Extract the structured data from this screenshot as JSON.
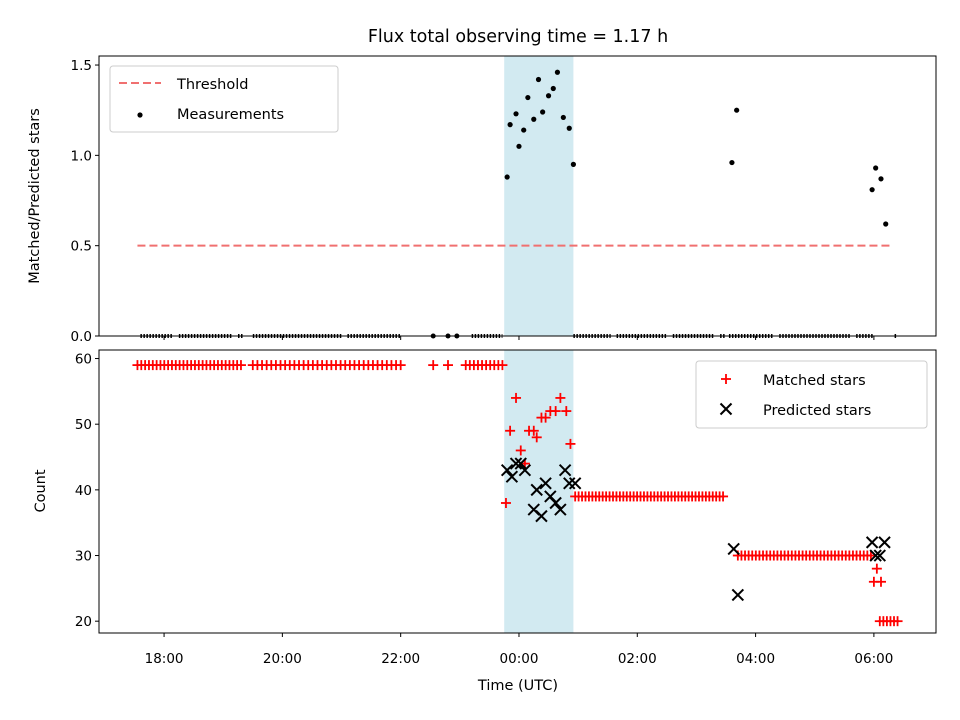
{
  "chart_data": [
    {
      "type": "scatter",
      "title": "Flux total observing time = 1.17 h",
      "xlabel": "",
      "ylabel": "Matched/Predicted stars",
      "ylim": [
        0,
        1.55
      ],
      "yticks": [
        "0.0",
        "0.5",
        "1.0",
        "1.5"
      ],
      "ytick_values": [
        0,
        0.5,
        1.0,
        1.5
      ],
      "xlim_hours": [
        16.9,
        31.05
      ],
      "threshold": {
        "name": "Threshold",
        "value": 0.5,
        "x_start": 17.55,
        "x_end": 30.3,
        "color": "#f07070"
      },
      "highlight": {
        "x_start": 23.75,
        "x_end": 24.92,
        "color": "#add8e6"
      },
      "measurements_name": "Measurements",
      "zero_segments": [
        [
          17.6,
          18.15
        ],
        [
          18.25,
          19.15
        ],
        [
          19.25,
          19.35
        ],
        [
          19.5,
          21.0
        ],
        [
          21.1,
          22.0
        ],
        [
          23.2,
          23.72
        ],
        [
          24.92,
          25.55
        ],
        [
          25.65,
          26.5
        ],
        [
          26.6,
          27.3
        ],
        [
          27.4,
          27.5
        ],
        [
          27.55,
          28.3
        ],
        [
          28.4,
          29.6
        ],
        [
          29.7,
          30.0
        ],
        [
          30.35,
          30.4
        ]
      ],
      "zero_extra": [
        22.55,
        22.8,
        22.95
      ],
      "points": [
        {
          "x": 23.8,
          "y": 0.88
        },
        {
          "x": 23.85,
          "y": 1.17
        },
        {
          "x": 23.95,
          "y": 1.23
        },
        {
          "x": 24.0,
          "y": 1.05
        },
        {
          "x": 24.08,
          "y": 1.14
        },
        {
          "x": 24.15,
          "y": 1.32
        },
        {
          "x": 24.25,
          "y": 1.2
        },
        {
          "x": 24.33,
          "y": 1.42
        },
        {
          "x": 24.4,
          "y": 1.24
        },
        {
          "x": 24.5,
          "y": 1.33
        },
        {
          "x": 24.58,
          "y": 1.37
        },
        {
          "x": 24.65,
          "y": 1.46
        },
        {
          "x": 24.75,
          "y": 1.21
        },
        {
          "x": 24.85,
          "y": 1.15
        },
        {
          "x": 24.92,
          "y": 0.95
        },
        {
          "x": 27.6,
          "y": 0.96
        },
        {
          "x": 27.68,
          "y": 1.25
        },
        {
          "x": 29.97,
          "y": 0.81
        },
        {
          "x": 30.03,
          "y": 0.93
        },
        {
          "x": 30.12,
          "y": 0.87
        },
        {
          "x": 30.2,
          "y": 0.62
        }
      ]
    },
    {
      "type": "scatter",
      "title": "",
      "xlabel": "Time (UTC)",
      "ylabel": "Count",
      "ylim": [
        18.2,
        61.3
      ],
      "yticks": [
        "20",
        "30",
        "40",
        "50",
        "60"
      ],
      "ytick_values": [
        20,
        30,
        40,
        50,
        60
      ],
      "xticks": [
        "18:00",
        "20:00",
        "22:00",
        "00:00",
        "02:00",
        "04:00",
        "06:00"
      ],
      "xtick_hours": [
        18,
        20,
        22,
        24,
        26,
        28,
        30
      ],
      "matched_name": "Matched stars",
      "predicted_name": "Predicted stars",
      "matched_color": "#ff0000",
      "predicted_color": "#000000",
      "matched_runs": [
        {
          "x0": 17.55,
          "x1": 19.3,
          "n": 28,
          "y": 59
        },
        {
          "x0": 19.5,
          "x1": 22.0,
          "n": 33,
          "y": 59
        },
        {
          "x0": 23.1,
          "x1": 23.72,
          "n": 10,
          "y": 59
        },
        {
          "x0": 24.95,
          "x1": 27.45,
          "n": 44,
          "y": 39
        },
        {
          "x0": 27.7,
          "x1": 29.95,
          "n": 38,
          "y": 30
        },
        {
          "x0": 30.1,
          "x1": 30.4,
          "n": 6,
          "y": 20
        }
      ],
      "matched_points": [
        {
          "x": 22.55,
          "y": 59
        },
        {
          "x": 22.8,
          "y": 59
        },
        {
          "x": 23.78,
          "y": 38
        },
        {
          "x": 23.85,
          "y": 49
        },
        {
          "x": 23.95,
          "y": 54
        },
        {
          "x": 24.03,
          "y": 46
        },
        {
          "x": 24.1,
          "y": 44
        },
        {
          "x": 24.17,
          "y": 49
        },
        {
          "x": 24.25,
          "y": 49
        },
        {
          "x": 24.3,
          "y": 48
        },
        {
          "x": 24.38,
          "y": 51
        },
        {
          "x": 24.45,
          "y": 51
        },
        {
          "x": 24.53,
          "y": 52
        },
        {
          "x": 24.62,
          "y": 52
        },
        {
          "x": 24.7,
          "y": 54
        },
        {
          "x": 24.8,
          "y": 52
        },
        {
          "x": 24.87,
          "y": 47
        },
        {
          "x": 30.0,
          "y": 26
        },
        {
          "x": 30.05,
          "y": 28
        },
        {
          "x": 30.12,
          "y": 26
        }
      ],
      "predicted_points": [
        {
          "x": 23.8,
          "y": 43
        },
        {
          "x": 23.88,
          "y": 42
        },
        {
          "x": 23.95,
          "y": 44
        },
        {
          "x": 24.03,
          "y": 44
        },
        {
          "x": 24.1,
          "y": 43
        },
        {
          "x": 24.25,
          "y": 37
        },
        {
          "x": 24.3,
          "y": 40
        },
        {
          "x": 24.38,
          "y": 36
        },
        {
          "x": 24.45,
          "y": 41
        },
        {
          "x": 24.53,
          "y": 39
        },
        {
          "x": 24.62,
          "y": 38
        },
        {
          "x": 24.7,
          "y": 37
        },
        {
          "x": 24.78,
          "y": 43
        },
        {
          "x": 24.85,
          "y": 41
        },
        {
          "x": 24.95,
          "y": 41
        },
        {
          "x": 27.63,
          "y": 31
        },
        {
          "x": 27.7,
          "y": 24
        },
        {
          "x": 29.97,
          "y": 32
        },
        {
          "x": 30.03,
          "y": 30
        },
        {
          "x": 30.1,
          "y": 30
        },
        {
          "x": 30.18,
          "y": 32
        }
      ]
    }
  ]
}
